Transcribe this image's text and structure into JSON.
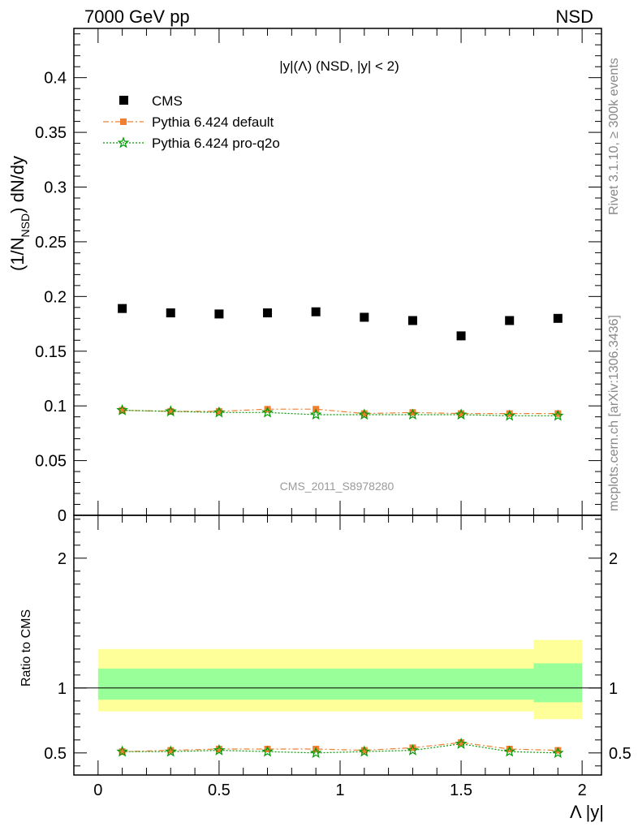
{
  "header": {
    "energy_label": "7000 GeV pp",
    "process_label": "NSD"
  },
  "side_labels": {
    "rivet": "Rivet 3.1.10, ≥ 300k events",
    "mcplots": "mcplots.cern.ch [arXiv:1306.3436]"
  },
  "plot_title": "|y|(Λ) (NSD, |y| < 2)",
  "analysis_id": "CMS_2011_S8978280",
  "legend": [
    {
      "label": "CMS",
      "color": "#000000",
      "marker": "square"
    },
    {
      "label": "Pythia 6.424 default",
      "color": "#f08030",
      "marker": "square-dashdot"
    },
    {
      "label": "Pythia 6.424 pro-q2o",
      "color": "#009900",
      "marker": "star-dotted"
    }
  ],
  "chart_data": [
    {
      "type": "scatter",
      "title": "|y|(Λ) (NSD, |y| < 2)",
      "ylabel": "(1/N_NSD) dN/dy",
      "ylabel_parts": {
        "main": "(1/N",
        "sub": "NSD",
        "tail": ") dN/dy"
      },
      "xlim": [
        -0.1,
        2.08
      ],
      "ylim": [
        0,
        0.445
      ],
      "yticks": [
        "0",
        "0.05",
        "0.1",
        "0.15",
        "0.2",
        "0.25",
        "0.3",
        "0.35",
        "0.4"
      ],
      "x": [
        0.1,
        0.3,
        0.5,
        0.7,
        0.9,
        1.1,
        1.3,
        1.5,
        1.7,
        1.9
      ],
      "series": [
        {
          "name": "CMS",
          "color": "#000000",
          "values": [
            0.189,
            0.185,
            0.184,
            0.185,
            0.186,
            0.181,
            0.178,
            0.164,
            0.178,
            0.18
          ]
        },
        {
          "name": "Pythia 6.424 default",
          "color": "#f08030",
          "values": [
            0.096,
            0.095,
            0.095,
            0.097,
            0.097,
            0.093,
            0.094,
            0.093,
            0.093,
            0.093
          ]
        },
        {
          "name": "Pythia 6.424 pro-q2o",
          "color": "#009900",
          "values": [
            0.096,
            0.095,
            0.094,
            0.094,
            0.092,
            0.092,
            0.092,
            0.092,
            0.091,
            0.091
          ]
        }
      ]
    },
    {
      "type": "scatter",
      "xlabel": "Λ |y|",
      "ylabel": "Ratio to CMS",
      "xlim": [
        -0.1,
        2.08
      ],
      "ylim": [
        0.33,
        2.33
      ],
      "xticks": [
        "0",
        "0.5",
        "1",
        "1.5",
        "2"
      ],
      "yticks": [
        "0.5",
        "1",
        "2"
      ],
      "x": [
        0.1,
        0.3,
        0.5,
        0.7,
        0.9,
        1.1,
        1.3,
        1.5,
        1.7,
        1.9
      ],
      "bands": {
        "yellow_color": "#ffff99",
        "green_color": "#99ff99",
        "segments": [
          {
            "x_from": 0.0,
            "x_to": 1.8,
            "yellow": [
              0.82,
              1.3
            ],
            "green": [
              0.91,
              1.15
            ]
          },
          {
            "x_from": 1.8,
            "x_to": 2.0,
            "yellow": [
              0.76,
              1.37
            ],
            "green": [
              0.89,
              1.19
            ]
          }
        ]
      },
      "series": [
        {
          "name": "Pythia 6.424 default",
          "color": "#f08030",
          "values": [
            0.51,
            0.52,
            0.53,
            0.53,
            0.53,
            0.52,
            0.54,
            0.58,
            0.53,
            0.52
          ]
        },
        {
          "name": "Pythia 6.424 pro-q2o",
          "color": "#009900",
          "values": [
            0.51,
            0.51,
            0.52,
            0.51,
            0.5,
            0.51,
            0.52,
            0.57,
            0.51,
            0.5
          ]
        }
      ]
    }
  ]
}
